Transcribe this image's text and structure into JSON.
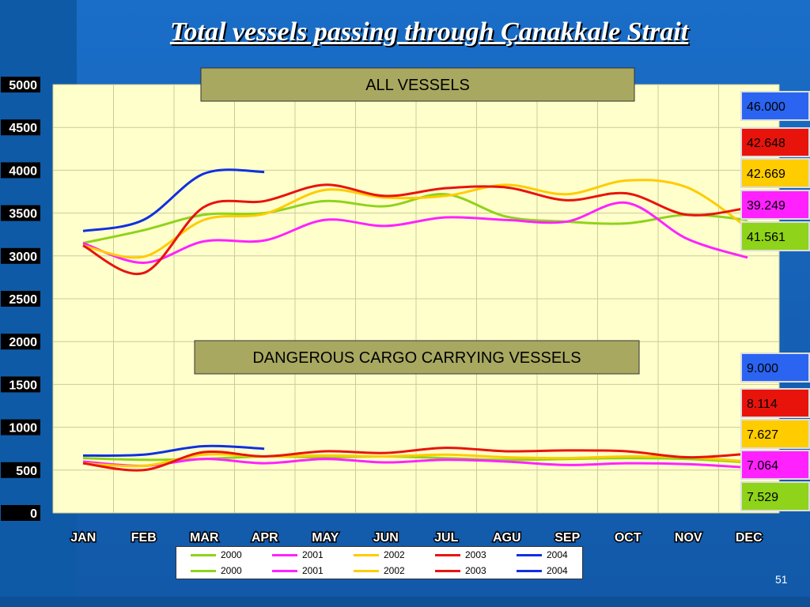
{
  "title": "Total vessels passing through Çanakkale Strait",
  "page_number": "51",
  "legend_rows": [
    [
      {
        "label": "2000",
        "color": "#8fd31a"
      },
      {
        "label": "2001",
        "color": "#ff22ff"
      },
      {
        "label": "2002",
        "color": "#ffcc00"
      },
      {
        "label": "2003",
        "color": "#e8140c"
      },
      {
        "label": "2004",
        "color": "#1030e0"
      }
    ],
    [
      {
        "label": "2000",
        "color": "#8fd31a"
      },
      {
        "label": "2001",
        "color": "#ff22ff"
      },
      {
        "label": "2002",
        "color": "#ffcc00"
      },
      {
        "label": "2003",
        "color": "#e8140c"
      },
      {
        "label": "2004",
        "color": "#1030e0"
      }
    ]
  ],
  "totals_all": [
    {
      "value": "46.000",
      "bg": "#2a64f0",
      "fg": "#000000"
    },
    {
      "value": "42.648",
      "bg": "#e8140c",
      "fg": "#000000"
    },
    {
      "value": "42.669",
      "bg": "#ffcc00",
      "fg": "#000000"
    },
    {
      "value": "39.249",
      "bg": "#ff22ff",
      "fg": "#000000"
    },
    {
      "value": "41.561",
      "bg": "#8fd31a",
      "fg": "#000000"
    }
  ],
  "totals_dangerous": [
    {
      "value": "9.000",
      "bg": "#2a64f0",
      "fg": "#000000"
    },
    {
      "value": "8.114",
      "bg": "#e8140c",
      "fg": "#000000"
    },
    {
      "value": "7.627",
      "bg": "#ffcc00",
      "fg": "#000000"
    },
    {
      "value": "7.064",
      "bg": "#ff22ff",
      "fg": "#000000"
    },
    {
      "value": "7.529",
      "bg": "#8fd31a",
      "fg": "#000000"
    }
  ],
  "chart_data": {
    "type": "line",
    "categories": [
      "JAN",
      "FEB",
      "MAR",
      "APR",
      "MAY",
      "JUN",
      "JUL",
      "AGU",
      "SEP",
      "OCT",
      "NOV",
      "DEC"
    ],
    "ylim": [
      0,
      5000
    ],
    "yticks": [
      0,
      500,
      1000,
      1500,
      2000,
      2500,
      3000,
      3500,
      4000,
      4500,
      5000
    ],
    "grid": true,
    "annotations": [
      "ALL VESSELS",
      "DANGEROUS CARGO CARRYING VESSELS"
    ],
    "groups": [
      {
        "name": "ALL VESSELS",
        "series": [
          {
            "name": "2000",
            "color": "#8fd31a",
            "values": [
              3150,
              3300,
              3480,
              3500,
              3640,
              3580,
              3720,
              3460,
              3400,
              3380,
              3480,
              3420
            ]
          },
          {
            "name": "2001",
            "color": "#ff22ff",
            "values": [
              3150,
              2920,
              3170,
              3180,
              3420,
              3350,
              3450,
              3420,
              3400,
              3620,
              3200,
              2980
            ]
          },
          {
            "name": "2002",
            "color": "#ffcc00",
            "values": [
              3120,
              2990,
              3420,
              3490,
              3770,
              3680,
              3700,
              3830,
              3720,
              3880,
              3800,
              3330
            ]
          },
          {
            "name": "2003",
            "color": "#e8140c",
            "values": [
              3120,
              2800,
              3570,
              3640,
              3830,
              3700,
              3790,
              3800,
              3650,
              3730,
              3480,
              3560
            ]
          },
          {
            "name": "2004",
            "color": "#1030e0",
            "values": [
              3290,
              3420,
              3960,
              3980
            ]
          }
        ]
      },
      {
        "name": "DANGEROUS CARGO CARRYING VESSELS",
        "series": [
          {
            "name": "2000",
            "color": "#8fd31a",
            "values": [
              640,
              620,
              630,
              660,
              650,
              660,
              640,
              620,
              630,
              640,
              630,
              590
            ]
          },
          {
            "name": "2001",
            "color": "#ff22ff",
            "values": [
              600,
              550,
              630,
              580,
              630,
              590,
              620,
              600,
              560,
              580,
              570,
              530
            ]
          },
          {
            "name": "2002",
            "color": "#ffcc00",
            "values": [
              580,
              550,
              680,
              660,
              670,
              660,
              680,
              650,
              640,
              660,
              650,
              600
            ]
          },
          {
            "name": "2003",
            "color": "#e8140c",
            "values": [
              580,
              500,
              710,
              660,
              720,
              700,
              760,
              720,
              730,
              720,
              650,
              690
            ]
          },
          {
            "name": "2004",
            "color": "#1030e0",
            "values": [
              670,
              680,
              780,
              750
            ]
          }
        ]
      }
    ]
  }
}
